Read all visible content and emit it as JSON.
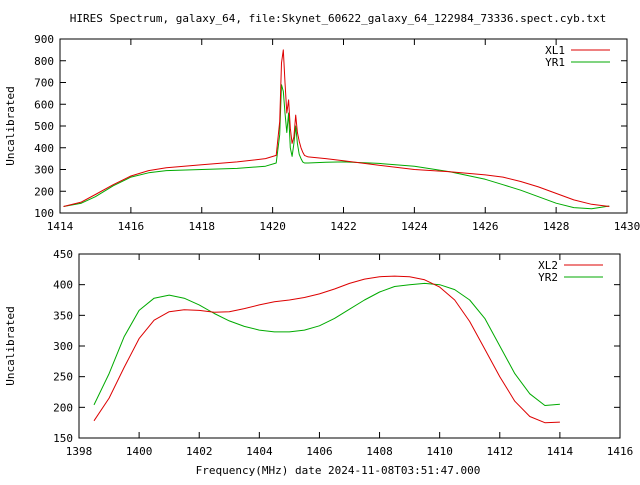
{
  "title": "HIRES Spectrum, galaxy_64, file:Skynet_60622_galaxy_64_122984_73336.spect.cyb.txt",
  "colors": {
    "red": "#dd0000",
    "green": "#00aa00",
    "axes": "#000000",
    "background": "#ffffff"
  },
  "chart_data": [
    {
      "type": "line",
      "title": "HIRES Spectrum, galaxy_64, file:Skynet_60622_galaxy_64_122984_73336.spect.cyb.txt",
      "xlabel": "",
      "ylabel": "Uncalibrated",
      "xlim": [
        1414,
        1430
      ],
      "ylim": [
        100,
        900
      ],
      "xticks": [
        1414,
        1416,
        1418,
        1420,
        1422,
        1424,
        1426,
        1428,
        1430
      ],
      "yticks": [
        100,
        200,
        300,
        400,
        500,
        600,
        700,
        800,
        900
      ],
      "legend": "top-right",
      "grid": false,
      "series": [
        {
          "name": "XL1",
          "color": "#dd0000",
          "x": [
            1414.1,
            1414.6,
            1415.0,
            1415.5,
            1416.0,
            1416.5,
            1417.0,
            1418.0,
            1419.0,
            1419.8,
            1420.1,
            1420.2,
            1420.25,
            1420.3,
            1420.35,
            1420.4,
            1420.45,
            1420.5,
            1420.55,
            1420.6,
            1420.65,
            1420.7,
            1420.75,
            1420.8,
            1420.85,
            1420.9,
            1421.0,
            1421.5,
            1422.0,
            1423.0,
            1424.0,
            1425.0,
            1426.0,
            1426.5,
            1427.0,
            1427.5,
            1428.0,
            1428.5,
            1429.0,
            1429.5
          ],
          "y": [
            130,
            150,
            185,
            230,
            270,
            295,
            308,
            322,
            335,
            350,
            365,
            520,
            790,
            850,
            700,
            560,
            620,
            490,
            420,
            450,
            550,
            470,
            430,
            400,
            380,
            365,
            358,
            350,
            340,
            320,
            300,
            290,
            275,
            265,
            245,
            220,
            190,
            160,
            140,
            130
          ]
        },
        {
          "name": "YR1",
          "color": "#00aa00",
          "x": [
            1414.1,
            1414.6,
            1415.0,
            1415.5,
            1416.0,
            1416.5,
            1417.0,
            1418.0,
            1419.0,
            1419.8,
            1420.1,
            1420.2,
            1420.25,
            1420.3,
            1420.35,
            1420.4,
            1420.45,
            1420.5,
            1420.55,
            1420.6,
            1420.65,
            1420.7,
            1420.75,
            1420.8,
            1420.85,
            1420.9,
            1421.0,
            1421.5,
            1422.0,
            1423.0,
            1424.0,
            1425.0,
            1426.0,
            1426.5,
            1427.0,
            1427.5,
            1428.0,
            1428.5,
            1429.0,
            1429.5
          ],
          "y": [
            130,
            145,
            175,
            225,
            265,
            285,
            295,
            300,
            305,
            315,
            330,
            460,
            690,
            660,
            560,
            470,
            560,
            400,
            360,
            420,
            500,
            420,
            370,
            350,
            335,
            330,
            330,
            333,
            335,
            328,
            315,
            290,
            255,
            230,
            205,
            175,
            145,
            125,
            120,
            132
          ]
        }
      ]
    },
    {
      "type": "line",
      "title": "",
      "xlabel": "Frequency(MHz) date 2024-11-08T03:51:47.000",
      "ylabel": "Uncalibrated",
      "xlim": [
        1398,
        1416
      ],
      "ylim": [
        150,
        450
      ],
      "xticks": [
        1398,
        1400,
        1402,
        1404,
        1406,
        1408,
        1410,
        1412,
        1414,
        1416
      ],
      "yticks": [
        150,
        200,
        250,
        300,
        350,
        400,
        450
      ],
      "legend": "top-right",
      "grid": false,
      "series": [
        {
          "name": "XL2",
          "color": "#dd0000",
          "x": [
            1398.5,
            1399.0,
            1399.5,
            1400.0,
            1400.5,
            1401.0,
            1401.5,
            1402.0,
            1402.5,
            1403.0,
            1403.5,
            1404.0,
            1404.5,
            1405.0,
            1405.5,
            1406.0,
            1406.5,
            1407.0,
            1407.5,
            1408.0,
            1408.5,
            1409.0,
            1409.5,
            1410.0,
            1410.5,
            1411.0,
            1411.5,
            1412.0,
            1412.5,
            1413.0,
            1413.5,
            1414.0
          ],
          "y": [
            178,
            215,
            265,
            312,
            342,
            356,
            359,
            358,
            355,
            356,
            361,
            367,
            372,
            375,
            379,
            385,
            393,
            402,
            409,
            413,
            414,
            413,
            408,
            396,
            375,
            340,
            295,
            250,
            210,
            185,
            175,
            176
          ]
        },
        {
          "name": "YR2",
          "color": "#00aa00",
          "x": [
            1398.5,
            1399.0,
            1399.5,
            1400.0,
            1400.5,
            1401.0,
            1401.5,
            1402.0,
            1402.5,
            1403.0,
            1403.5,
            1404.0,
            1404.5,
            1405.0,
            1405.5,
            1406.0,
            1406.5,
            1407.0,
            1407.5,
            1408.0,
            1408.5,
            1409.0,
            1409.5,
            1410.0,
            1410.5,
            1411.0,
            1411.5,
            1412.0,
            1412.5,
            1413.0,
            1413.5,
            1414.0
          ],
          "y": [
            204,
            255,
            315,
            358,
            378,
            383,
            378,
            367,
            353,
            341,
            332,
            326,
            323,
            323,
            326,
            333,
            345,
            360,
            375,
            388,
            397,
            400,
            402,
            400,
            392,
            375,
            345,
            300,
            255,
            222,
            203,
            205
          ]
        }
      ]
    }
  ]
}
